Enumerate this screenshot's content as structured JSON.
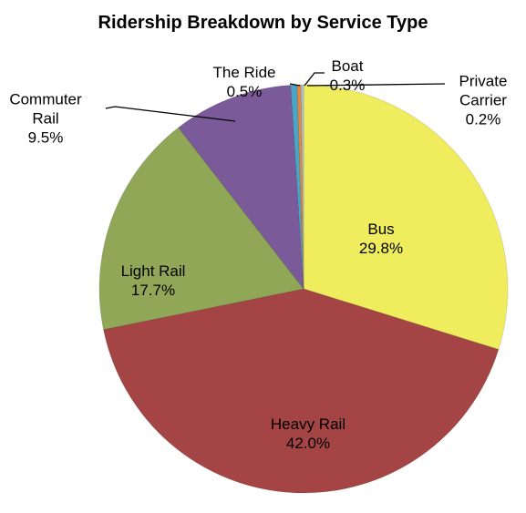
{
  "chart_data": {
    "type": "pie",
    "title": "Ridership Breakdown by Service Type",
    "categories": [
      "Bus",
      "Heavy Rail",
      "Light Rail",
      "Commuter Rail",
      "The Ride",
      "Boat",
      "Private Carrier"
    ],
    "values": [
      29.8,
      42.0,
      17.7,
      9.5,
      0.5,
      0.3,
      0.2
    ],
    "value_labels": [
      "29.8%",
      "42.0%",
      "17.7%",
      "9.5%",
      "0.5%",
      "0.3%",
      "0.2%"
    ],
    "colors": [
      "#efec5e",
      "#a44444",
      "#8fa756",
      "#7a5a99",
      "#4aa6c6",
      "#e8893a",
      "#a9c1e2"
    ]
  }
}
